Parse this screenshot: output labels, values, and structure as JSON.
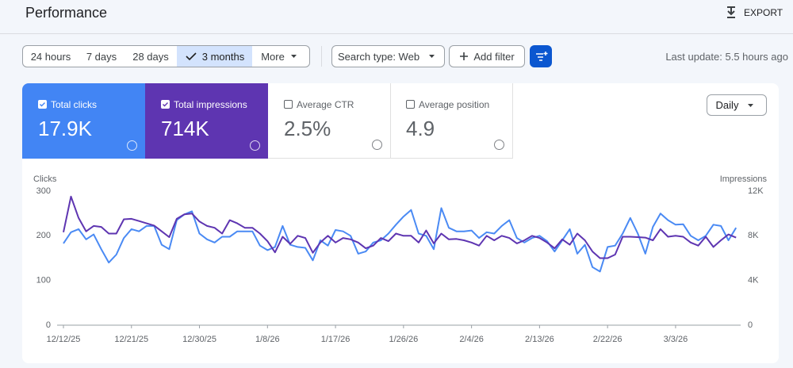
{
  "header": {
    "title": "Performance",
    "export": "EXPORT"
  },
  "toolbar": {
    "date_ranges": [
      "24 hours",
      "7 days",
      "28 days",
      "3 months",
      "More"
    ],
    "search_type": "Search type: Web",
    "add_filter": "Add filter",
    "last_update": "Last update: 5.5 hours ago"
  },
  "metrics": [
    {
      "label": "Total clicks",
      "value": "17.9K"
    },
    {
      "label": "Total impressions",
      "value": "714K"
    },
    {
      "label": "Average CTR",
      "value": "2.5%"
    },
    {
      "label": "Average position",
      "value": "4.9"
    }
  ],
  "granularity": "Daily",
  "chart_data": {
    "type": "line",
    "ylabel": "Clicks",
    "y2label": "Impressions",
    "categories": [
      "12/12/25",
      null,
      null,
      null,
      null,
      null,
      null,
      null,
      null,
      "12/21/25",
      null,
      null,
      null,
      null,
      null,
      null,
      null,
      null,
      "12/30/25",
      null,
      null,
      null,
      null,
      null,
      null,
      null,
      null,
      "1/8/26",
      null,
      null,
      null,
      null,
      null,
      null,
      null,
      null,
      "1/17/26",
      null,
      null,
      null,
      null,
      null,
      null,
      null,
      null,
      "1/26/26",
      null,
      null,
      null,
      null,
      null,
      null,
      null,
      null,
      "2/4/26",
      null,
      null,
      null,
      null,
      null,
      null,
      null,
      null,
      "2/13/26",
      null,
      null,
      null,
      null,
      null,
      null,
      null,
      null,
      "2/22/26",
      null,
      null,
      null,
      null,
      null,
      null,
      null,
      null,
      "3/3/26",
      null,
      null,
      null,
      null,
      null,
      null,
      null,
      null
    ],
    "ylim": [
      0,
      300
    ],
    "yticks": [
      0,
      100,
      200,
      300
    ],
    "y2lim": [
      0,
      12000
    ],
    "y2ticks": [
      0,
      {
        "value": 4000,
        "label": "4K"
      },
      {
        "value": 8000,
        "label": "8K"
      },
      {
        "value": 12000,
        "label": "12K"
      }
    ],
    "grid": false,
    "series": [
      {
        "name": "Clicks",
        "color": "#4a8af4",
        "values": [
          183,
          208,
          215,
          192,
          203,
          170,
          140,
          158,
          195,
          215,
          210,
          222,
          222,
          180,
          170,
          235,
          248,
          255,
          205,
          192,
          185,
          198,
          198,
          210,
          210,
          210,
          178,
          168,
          175,
          222,
          180,
          175,
          173,
          145,
          190,
          178,
          213,
          210,
          200,
          160,
          165,
          185,
          190,
          205,
          225,
          243,
          258,
          205,
          200,
          170,
          262,
          218,
          210,
          210,
          212,
          195,
          208,
          205,
          222,
          235,
          195,
          185,
          195,
          200,
          188,
          165,
          190,
          215,
          160,
          180,
          130,
          120,
          175,
          178,
          205,
          240,
          205,
          160,
          220,
          250,
          235,
          225,
          226,
          200,
          190,
          200,
          225,
          222,
          190,
          218
        ]
      },
      {
        "name": "Impressions",
        "color": "#5e35b1",
        "axis": "y2",
        "values": [
          8320,
          11520,
          9600,
          8400,
          8880,
          8800,
          8200,
          8200,
          9480,
          9520,
          9320,
          9120,
          8920,
          8400,
          7880,
          9520,
          9920,
          10000,
          9280,
          8880,
          8720,
          8200,
          9400,
          9120,
          8720,
          8720,
          8200,
          7520,
          6520,
          7920,
          7280,
          8000,
          7800,
          6480,
          7400,
          8000,
          7400,
          7800,
          7680,
          7400,
          6880,
          7120,
          7800,
          7520,
          8200,
          8000,
          8000,
          7400,
          8480,
          7320,
          8200,
          7680,
          7720,
          7600,
          7400,
          7120,
          8000,
          7600,
          8000,
          7800,
          7320,
          7600,
          8000,
          7800,
          7400,
          6880,
          7680,
          7200,
          8200,
          7600,
          6600,
          6000,
          6000,
          6320,
          7920,
          7920,
          7880,
          7840,
          7600,
          8600,
          7920,
          8000,
          7920,
          7400,
          7120,
          7920,
          7000,
          7600,
          8120,
          7840
        ]
      }
    ]
  }
}
